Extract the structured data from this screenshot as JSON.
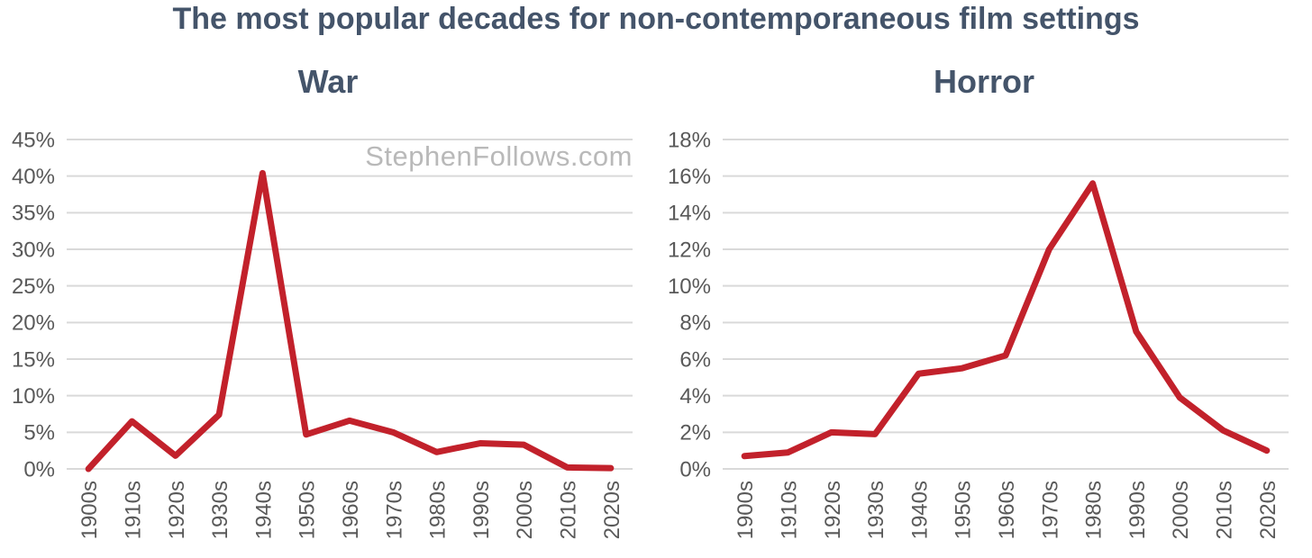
{
  "title": "The most popular decades for non-contemporaneous film settings",
  "watermark": "StephenFollows.com",
  "colors": {
    "line": "#c2212b",
    "grid": "#d9d9d9",
    "axis_text": "#595959",
    "title_text": "#44546a",
    "watermark_text": "#b9b9b9",
    "background": "#ffffff"
  },
  "chart_data": [
    {
      "type": "line",
      "title": "War",
      "categories": [
        "1900s",
        "1910s",
        "1920s",
        "1930s",
        "1940s",
        "1950s",
        "1960s",
        "1970s",
        "1980s",
        "1990s",
        "2000s",
        "2010s",
        "2020s"
      ],
      "values": [
        0,
        6.5,
        1.8,
        7.4,
        40.4,
        4.7,
        6.6,
        5.0,
        2.3,
        3.5,
        3.3,
        0.2,
        0.1
      ],
      "xlabel": "",
      "ylabel": "",
      "ylim": [
        0,
        45
      ],
      "ytick_values": [
        0,
        5,
        10,
        15,
        20,
        25,
        30,
        35,
        40,
        45
      ],
      "ytick_labels": [
        "0%",
        "5%",
        "10%",
        "15%",
        "20%",
        "25%",
        "30%",
        "35%",
        "40%",
        "45%"
      ],
      "grid": true,
      "legend": "none"
    },
    {
      "type": "line",
      "title": "Horror",
      "categories": [
        "1900s",
        "1910s",
        "1920s",
        "1930s",
        "1940s",
        "1950s",
        "1960s",
        "1970s",
        "1980s",
        "1990s",
        "2000s",
        "2010s",
        "2020s"
      ],
      "values": [
        0.7,
        0.9,
        2.0,
        1.9,
        5.2,
        5.5,
        6.2,
        12.0,
        15.6,
        7.5,
        3.9,
        2.1,
        1.0
      ],
      "xlabel": "",
      "ylabel": "",
      "ylim": [
        0,
        18
      ],
      "ytick_values": [
        0,
        2,
        4,
        6,
        8,
        10,
        12,
        14,
        16,
        18
      ],
      "ytick_labels": [
        "0%",
        "2%",
        "4%",
        "6%",
        "8%",
        "10%",
        "12%",
        "14%",
        "16%",
        "18%"
      ],
      "grid": true,
      "legend": "none"
    }
  ]
}
